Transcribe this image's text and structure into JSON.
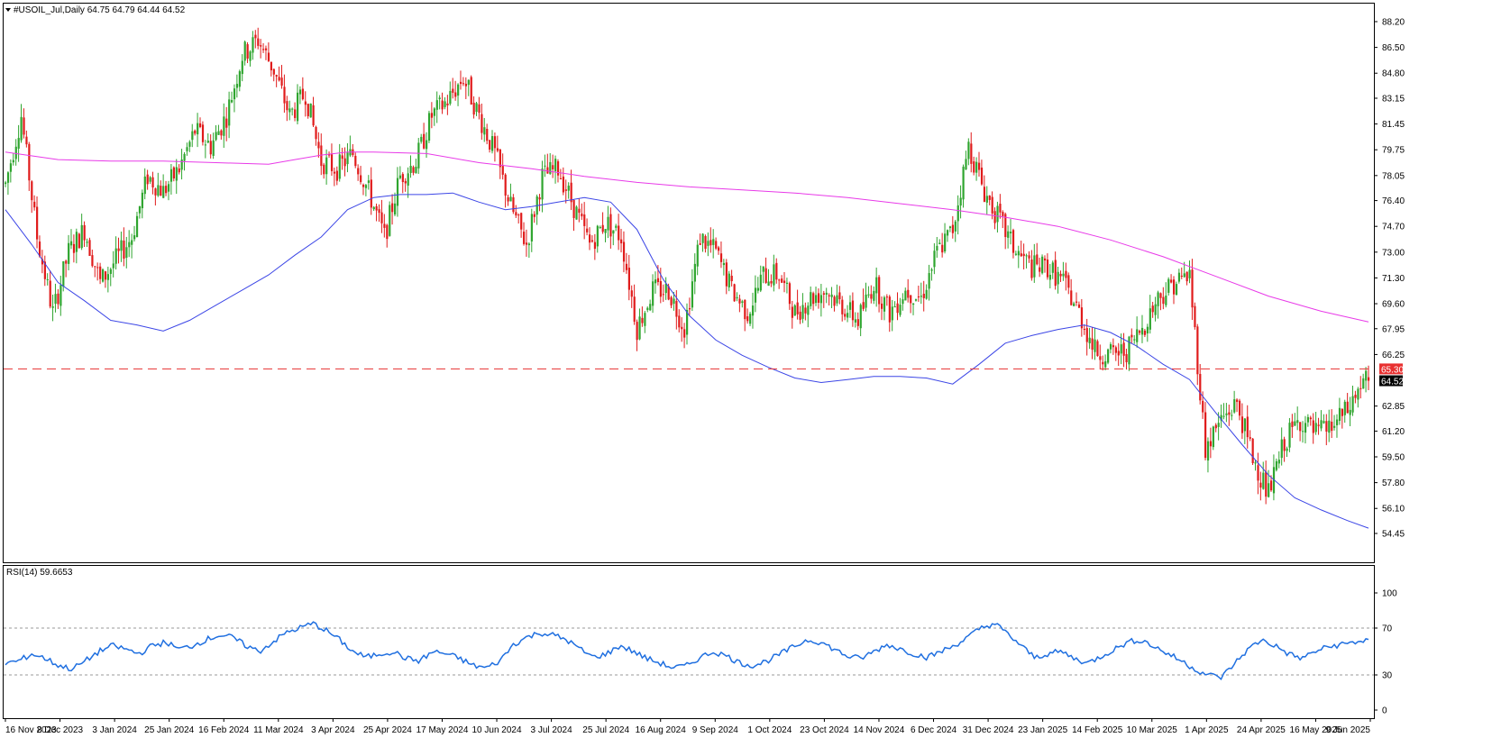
{
  "header": {
    "symbol_line": "#USOIL_Jul,Daily  64.75 64.79 64.44 64.52",
    "menu_icon": "triangle-down-icon"
  },
  "rsi_panel": {
    "label": "RSI(14) 59.6653"
  },
  "colors": {
    "bull": "#2fa52f",
    "bear": "#e01b1b",
    "ma_short": "#3c46e6",
    "ma_long": "#e83ae8",
    "rsi": "#1f6fe0",
    "support": "#e83030",
    "price_tag": "#e83030",
    "current_tag": "#000000"
  },
  "chart_data": [
    {
      "type": "candlestick",
      "title": "#USOIL_Jul,Daily",
      "ohlc_last": {
        "open": 64.75,
        "high": 64.79,
        "low": 64.44,
        "close": 64.52
      },
      "ylim": [
        54.45,
        88.2
      ],
      "y_ticks": [
        "88.20",
        "86.50",
        "84.80",
        "83.15",
        "81.45",
        "79.75",
        "78.05",
        "76.40",
        "74.70",
        "73.00",
        "71.30",
        "69.60",
        "67.95",
        "66.25",
        "62.85",
        "61.20",
        "59.50",
        "57.80",
        "56.10",
        "54.45"
      ],
      "x_ticks": [
        "16 Nov 2023",
        "8 Dec 2023",
        "3 Jan 2024",
        "25 Jan 2024",
        "16 Feb 2024",
        "11 Mar 2024",
        "3 Apr 2024",
        "25 Apr 2024",
        "17 May 2024",
        "10 Jun 2024",
        "3 Jul 2024",
        "25 Jul 2024",
        "16 Aug 2024",
        "9 Sep 2024",
        "1 Oct 2024",
        "23 Oct 2024",
        "14 Nov 2024",
        "6 Dec 2024",
        "31 Dec 2024",
        "23 Jan 2025",
        "14 Feb 2025",
        "10 Mar 2025",
        "1 Apr 2025",
        "24 Apr 2025",
        "16 May 2025",
        "9 Jun 2025"
      ],
      "price_path": [
        [
          0,
          77.5
        ],
        [
          6,
          82
        ],
        [
          12,
          74
        ],
        [
          18,
          69
        ],
        [
          24,
          73
        ],
        [
          30,
          74.5
        ],
        [
          36,
          71
        ],
        [
          42,
          72.5
        ],
        [
          48,
          74
        ],
        [
          54,
          78
        ],
        [
          60,
          77
        ],
        [
          66,
          78.5
        ],
        [
          72,
          81
        ],
        [
          78,
          80
        ],
        [
          84,
          82
        ],
        [
          90,
          86
        ],
        [
          96,
          87
        ],
        [
          102,
          85
        ],
        [
          108,
          82
        ],
        [
          114,
          83.5
        ],
        [
          120,
          79
        ],
        [
          126,
          78.5
        ],
        [
          132,
          79.5
        ],
        [
          138,
          77
        ],
        [
          144,
          74
        ],
        [
          150,
          78
        ],
        [
          156,
          79
        ],
        [
          162,
          82
        ],
        [
          168,
          83
        ],
        [
          174,
          84.5
        ],
        [
          180,
          82
        ],
        [
          186,
          79.5
        ],
        [
          192,
          76
        ],
        [
          198,
          73.5
        ],
        [
          204,
          78
        ],
        [
          210,
          78.5
        ],
        [
          216,
          76
        ],
        [
          222,
          73.5
        ],
        [
          228,
          75
        ],
        [
          234,
          74
        ],
        [
          240,
          68
        ],
        [
          246,
          70.5
        ],
        [
          252,
          70.5
        ],
        [
          258,
          68
        ],
        [
          264,
          74
        ],
        [
          270,
          73
        ],
        [
          276,
          70.5
        ],
        [
          282,
          69
        ],
        [
          288,
          71.5
        ],
        [
          294,
          71.5
        ],
        [
          300,
          69
        ],
        [
          306,
          70
        ],
        [
          312,
          70.5
        ],
        [
          318,
          69.5
        ],
        [
          324,
          68.5
        ],
        [
          330,
          71
        ],
        [
          336,
          69
        ],
        [
          342,
          70.5
        ],
        [
          348,
          70
        ],
        [
          354,
          73
        ],
        [
          360,
          74.5
        ],
        [
          366,
          80
        ],
        [
          372,
          77
        ],
        [
          378,
          75
        ],
        [
          384,
          73
        ],
        [
          390,
          72
        ],
        [
          396,
          72
        ],
        [
          402,
          71
        ],
        [
          408,
          69
        ],
        [
          414,
          66.5
        ],
        [
          420,
          66.2
        ],
        [
          426,
          66.5
        ],
        [
          432,
          68
        ],
        [
          438,
          70
        ],
        [
          444,
          71
        ],
        [
          450,
          71.5
        ],
        [
          456,
          60
        ],
        [
          462,
          62
        ],
        [
          468,
          63
        ],
        [
          474,
          59.5
        ],
        [
          480,
          57
        ],
        [
          486,
          60.5
        ],
        [
          492,
          62
        ],
        [
          498,
          61
        ],
        [
          504,
          61.5
        ],
        [
          510,
          62.5
        ],
        [
          516,
          64.5
        ],
        [
          518,
          64.52
        ]
      ],
      "candle_count": 519,
      "series": [
        {
          "name": "",
          "kind": "moving-average-short",
          "points": [
            [
              0,
              75.8
            ],
            [
              10,
              73.5
            ],
            [
              20,
              71
            ],
            [
              30,
              69.8
            ],
            [
              40,
              68.5
            ],
            [
              50,
              68.2
            ],
            [
              60,
              67.8
            ],
            [
              70,
              68.5
            ],
            [
              80,
              69.5
            ],
            [
              90,
              70.5
            ],
            [
              100,
              71.5
            ],
            [
              110,
              72.8
            ],
            [
              120,
              74
            ],
            [
              130,
              75.8
            ],
            [
              140,
              76.6
            ],
            [
              150,
              76.8
            ],
            [
              160,
              76.8
            ],
            [
              170,
              76.9
            ],
            [
              180,
              76.3
            ],
            [
              190,
              75.8
            ],
            [
              200,
              76
            ],
            [
              210,
              76.3
            ],
            [
              220,
              76.6
            ],
            [
              230,
              76.3
            ],
            [
              240,
              74.5
            ],
            [
              250,
              71.2
            ],
            [
              260,
              68.8
            ],
            [
              270,
              67.2
            ],
            [
              280,
              66.2
            ],
            [
              290,
              65.4
            ],
            [
              300,
              64.7
            ],
            [
              310,
              64.4
            ],
            [
              320,
              64.6
            ],
            [
              330,
              64.8
            ],
            [
              340,
              64.8
            ],
            [
              350,
              64.7
            ],
            [
              360,
              64.3
            ],
            [
              370,
              65.6
            ],
            [
              380,
              67
            ],
            [
              390,
              67.5
            ],
            [
              400,
              67.9
            ],
            [
              410,
              68.2
            ],
            [
              420,
              67.7
            ],
            [
              430,
              66.8
            ],
            [
              440,
              65.6
            ],
            [
              450,
              64.6
            ],
            [
              460,
              62.4
            ],
            [
              470,
              60.3
            ],
            [
              480,
              58.3
            ],
            [
              490,
              56.8
            ],
            [
              500,
              56
            ],
            [
              510,
              55.3
            ],
            [
              518,
              54.8
            ]
          ]
        },
        {
          "name": "",
          "kind": "moving-average-long",
          "points": [
            [
              0,
              79.6
            ],
            [
              20,
              79.1
            ],
            [
              40,
              79
            ],
            [
              60,
              79
            ],
            [
              80,
              78.9
            ],
            [
              100,
              78.8
            ],
            [
              110,
              79.1
            ],
            [
              120,
              79.4
            ],
            [
              130,
              79.6
            ],
            [
              140,
              79.6
            ],
            [
              160,
              79.5
            ],
            [
              180,
              78.9
            ],
            [
              200,
              78.5
            ],
            [
              220,
              78
            ],
            [
              240,
              77.6
            ],
            [
              260,
              77.3
            ],
            [
              280,
              77.1
            ],
            [
              300,
              76.9
            ],
            [
              320,
              76.6
            ],
            [
              340,
              76.2
            ],
            [
              360,
              75.8
            ],
            [
              380,
              75.3
            ],
            [
              400,
              74.7
            ],
            [
              420,
              73.8
            ],
            [
              440,
              72.7
            ],
            [
              460,
              71.4
            ],
            [
              480,
              70.1
            ],
            [
              500,
              69.1
            ],
            [
              518,
              68.4
            ]
          ]
        }
      ],
      "horizontal_lines": [
        {
          "value": 65.3,
          "style": "dashed"
        }
      ],
      "price_tags": [
        {
          "value": 65.3,
          "label": "65.30"
        },
        {
          "value": 64.52,
          "label": "64.52"
        }
      ]
    },
    {
      "type": "line",
      "title": "RSI(14) 59.6653",
      "ylim": [
        0,
        100
      ],
      "y_ticks": [
        "100",
        "70",
        "30",
        "0"
      ],
      "levels": [
        70,
        30
      ],
      "series": [
        {
          "name": "",
          "values": [
            40,
            42,
            48,
            44,
            38,
            35,
            42,
            50,
            55,
            52,
            48,
            55,
            58,
            52,
            55,
            60,
            64,
            62,
            55,
            50,
            58,
            66,
            70,
            74,
            68,
            60,
            50,
            45,
            48,
            50,
            44,
            42,
            50,
            48,
            44,
            38,
            36,
            42,
            56,
            62,
            66,
            64,
            60,
            52,
            45,
            48,
            55,
            50,
            44,
            40,
            36,
            38,
            45,
            50,
            46,
            40,
            38,
            42,
            48,
            54,
            60,
            58,
            52,
            46,
            44,
            50,
            56,
            52,
            48,
            45,
            50,
            55,
            62,
            70,
            74,
            65,
            55,
            45,
            48,
            50,
            44,
            40,
            46,
            52,
            58,
            60,
            54,
            48,
            42,
            35,
            30,
            28,
            40,
            52,
            60,
            55,
            48,
            44,
            50,
            54,
            56,
            58,
            60
          ]
        }
      ]
    }
  ]
}
